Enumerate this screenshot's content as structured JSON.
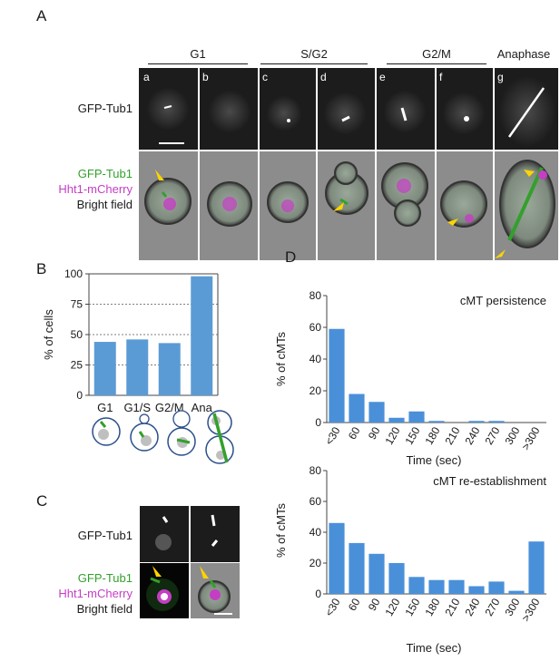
{
  "panel_a": {
    "letter": "A",
    "stages": [
      "G1",
      "S/G2",
      "G2/M",
      "Anaphase"
    ],
    "cell_letters": [
      "a",
      "b",
      "c",
      "d",
      "e",
      "f",
      "g"
    ],
    "row1_label": "GFP-Tub1",
    "row2_labels": [
      "GFP-Tub1",
      "Hht1-mCherry",
      "Bright field"
    ],
    "colors": {
      "gfp": "#33a02c",
      "mcherry": "#c43ec4",
      "arrow": "#ffd400"
    }
  },
  "panel_b": {
    "letter": "B",
    "chart_data": {
      "type": "bar",
      "categories": [
        "G1",
        "G1/S",
        "G2/M",
        "Ana"
      ],
      "values": [
        44,
        46,
        43,
        98
      ],
      "title": "",
      "xlabel": "",
      "ylabel": "% of cells",
      "ylim": [
        0,
        100
      ],
      "yticks": [
        0,
        25,
        50,
        75,
        100
      ],
      "grid": "dotted at 25, 50, 75",
      "bar_color": "#5b9bd5"
    }
  },
  "panel_c": {
    "letter": "C",
    "row1_label": "GFP-Tub1",
    "row2_labels": [
      "GFP-Tub1",
      "Hht1-mCherry",
      "Bright field"
    ]
  },
  "panel_d": {
    "letter": "D",
    "chart_data": [
      {
        "type": "bar",
        "title": "cMT persistence",
        "categories": [
          "<30",
          "60",
          "90",
          "120",
          "150",
          "180",
          "210",
          "240",
          "270",
          "300",
          ">300"
        ],
        "values": [
          59,
          18,
          13,
          3,
          7,
          1,
          0,
          1,
          1,
          0,
          0
        ],
        "xlabel": "Time (sec)",
        "ylabel": "% of cMTs",
        "ylim": [
          0,
          80
        ],
        "yticks": [
          0,
          20,
          40,
          60,
          80
        ],
        "bar_color": "#4a90d9"
      },
      {
        "type": "bar",
        "title": "cMT re-establishment",
        "categories": [
          "<30",
          "60",
          "90",
          "120",
          "150",
          "180",
          "210",
          "240",
          "270",
          "300",
          ">300"
        ],
        "values": [
          46,
          33,
          26,
          20,
          11,
          9,
          9,
          5,
          8,
          2,
          34
        ],
        "xlabel": "Time (sec)",
        "ylabel": "% of cMTs",
        "ylim": [
          0,
          80
        ],
        "yticks": [
          0,
          20,
          40,
          60,
          80
        ],
        "bar_color": "#4a90d9"
      }
    ]
  }
}
